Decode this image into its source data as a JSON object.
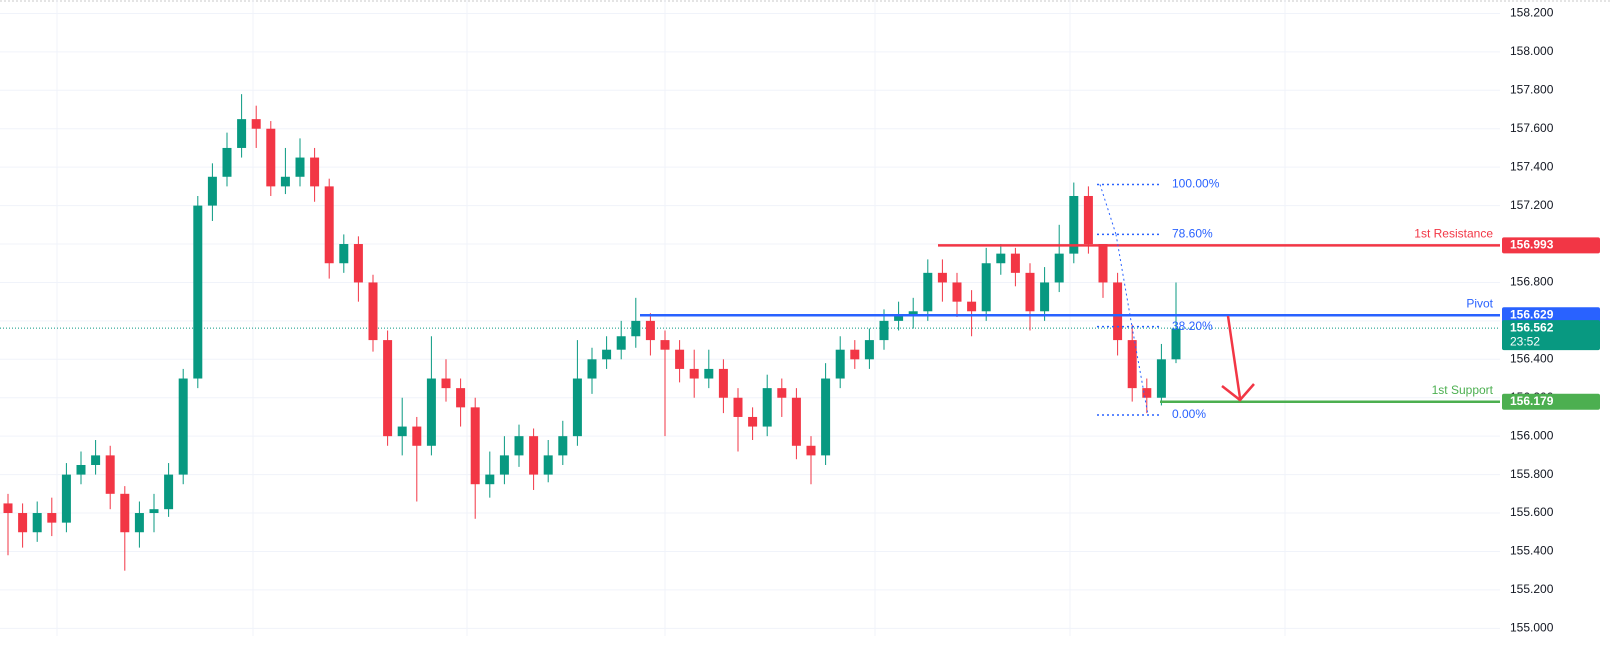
{
  "chart_data": {
    "type": "candlestick",
    "up_color": "#089981",
    "down_color": "#f23645",
    "ylim": [
      154.96,
      158.27
    ],
    "yticks": [
      {
        "value": 155.0,
        "label": "155.000"
      },
      {
        "value": 155.2,
        "label": "155.200"
      },
      {
        "value": 155.4,
        "label": "155.400"
      },
      {
        "value": 155.6,
        "label": "155.600"
      },
      {
        "value": 155.8,
        "label": "155.800"
      },
      {
        "value": 156.0,
        "label": "156.000"
      },
      {
        "value": 156.2,
        "label": "156.200"
      },
      {
        "value": 156.4,
        "label": "156.400"
      },
      {
        "value": 156.6,
        "label": "156.600"
      },
      {
        "value": 156.8,
        "label": "156.800"
      },
      {
        "value": 157.0,
        "label": "157.000"
      },
      {
        "value": 157.2,
        "label": "157.200"
      },
      {
        "value": 157.4,
        "label": "157.400"
      },
      {
        "value": 157.6,
        "label": "157.600"
      },
      {
        "value": 157.8,
        "label": "157.800"
      },
      {
        "value": 158.0,
        "label": "158.000"
      },
      {
        "value": 158.2,
        "label": "158.200"
      }
    ],
    "grid": true,
    "ohlc": [
      [
        155.65,
        155.7,
        155.38,
        155.6
      ],
      [
        155.6,
        155.65,
        155.42,
        155.5
      ],
      [
        155.5,
        155.66,
        155.45,
        155.6
      ],
      [
        155.6,
        155.68,
        155.48,
        155.55
      ],
      [
        155.55,
        155.86,
        155.5,
        155.8
      ],
      [
        155.8,
        155.92,
        155.75,
        155.85
      ],
      [
        155.85,
        155.98,
        155.8,
        155.9
      ],
      [
        155.9,
        155.95,
        155.62,
        155.7
      ],
      [
        155.7,
        155.74,
        155.3,
        155.5
      ],
      [
        155.5,
        155.66,
        155.42,
        155.6
      ],
      [
        155.6,
        155.7,
        155.5,
        155.62
      ],
      [
        155.62,
        155.86,
        155.58,
        155.8
      ],
      [
        155.8,
        156.35,
        155.75,
        156.3
      ],
      [
        156.3,
        157.25,
        156.25,
        157.2
      ],
      [
        157.2,
        157.42,
        157.12,
        157.35
      ],
      [
        157.35,
        157.58,
        157.3,
        157.5
      ],
      [
        157.5,
        157.78,
        157.45,
        157.65
      ],
      [
        157.65,
        157.72,
        157.5,
        157.6
      ],
      [
        157.6,
        157.64,
        157.25,
        157.3
      ],
      [
        157.3,
        157.5,
        157.26,
        157.35
      ],
      [
        157.35,
        157.55,
        157.3,
        157.45
      ],
      [
        157.45,
        157.5,
        157.22,
        157.3
      ],
      [
        157.3,
        157.34,
        156.82,
        156.9
      ],
      [
        156.9,
        157.05,
        156.85,
        157.0
      ],
      [
        157.0,
        157.04,
        156.7,
        156.8
      ],
      [
        156.8,
        156.84,
        156.44,
        156.5
      ],
      [
        156.5,
        156.55,
        155.95,
        156.0
      ],
      [
        156.0,
        156.2,
        155.9,
        156.05
      ],
      [
        156.05,
        156.1,
        155.66,
        155.95
      ],
      [
        155.95,
        156.52,
        155.9,
        156.3
      ],
      [
        156.3,
        156.4,
        156.18,
        156.25
      ],
      [
        156.25,
        156.3,
        156.05,
        156.15
      ],
      [
        156.15,
        156.2,
        155.57,
        155.75
      ],
      [
        155.75,
        155.92,
        155.68,
        155.8
      ],
      [
        155.8,
        156.0,
        155.75,
        155.9
      ],
      [
        155.9,
        156.06,
        155.84,
        156.0
      ],
      [
        156.0,
        156.04,
        155.72,
        155.8
      ],
      [
        155.8,
        155.98,
        155.76,
        155.9
      ],
      [
        155.9,
        156.08,
        155.85,
        156.0
      ],
      [
        156.0,
        156.5,
        155.95,
        156.3
      ],
      [
        156.3,
        156.46,
        156.22,
        156.4
      ],
      [
        156.4,
        156.52,
        156.35,
        156.45
      ],
      [
        156.45,
        156.6,
        156.4,
        156.52
      ],
      [
        156.52,
        156.72,
        156.46,
        156.6
      ],
      [
        156.6,
        156.64,
        156.42,
        156.5
      ],
      [
        156.5,
        156.55,
        156.0,
        156.45
      ],
      [
        156.45,
        156.5,
        156.28,
        156.35
      ],
      [
        156.35,
        156.45,
        156.2,
        156.3
      ],
      [
        156.3,
        156.45,
        156.25,
        156.35
      ],
      [
        156.35,
        156.4,
        156.12,
        156.2
      ],
      [
        156.2,
        156.25,
        155.92,
        156.1
      ],
      [
        156.1,
        156.15,
        155.98,
        156.05
      ],
      [
        156.05,
        156.32,
        156.0,
        156.25
      ],
      [
        156.25,
        156.3,
        156.1,
        156.2
      ],
      [
        156.2,
        156.25,
        155.88,
        155.95
      ],
      [
        155.95,
        156.0,
        155.75,
        155.9
      ],
      [
        155.9,
        156.38,
        155.85,
        156.3
      ],
      [
        156.3,
        156.52,
        156.25,
        156.45
      ],
      [
        156.45,
        156.5,
        156.35,
        156.4
      ],
      [
        156.4,
        156.56,
        156.35,
        156.5
      ],
      [
        156.5,
        156.66,
        156.45,
        156.6
      ],
      [
        156.6,
        156.7,
        156.55,
        156.63
      ],
      [
        156.63,
        156.72,
        156.56,
        156.65
      ],
      [
        156.65,
        156.92,
        156.6,
        156.85
      ],
      [
        156.85,
        156.92,
        156.7,
        156.8
      ],
      [
        156.8,
        156.85,
        156.62,
        156.7
      ],
      [
        156.7,
        156.76,
        156.52,
        156.65
      ],
      [
        156.65,
        156.98,
        156.6,
        156.9
      ],
      [
        156.9,
        157.0,
        156.84,
        156.95
      ],
      [
        156.95,
        156.98,
        156.78,
        156.85
      ],
      [
        156.85,
        156.9,
        156.55,
        156.65
      ],
      [
        156.65,
        156.88,
        156.6,
        156.8
      ],
      [
        156.8,
        157.1,
        156.75,
        156.95
      ],
      [
        156.95,
        157.32,
        156.9,
        157.25
      ],
      [
        157.25,
        157.3,
        156.95,
        157.0
      ],
      [
        157.0,
        156.98,
        156.72,
        156.8
      ],
      [
        156.8,
        156.85,
        156.42,
        156.5
      ],
      [
        156.5,
        156.58,
        156.18,
        156.25
      ],
      [
        156.25,
        156.3,
        156.12,
        156.2
      ],
      [
        156.2,
        156.48,
        156.16,
        156.4
      ],
      [
        156.4,
        156.8,
        156.38,
        156.56
      ]
    ],
    "levels": [
      {
        "name": "1st Resistance",
        "value": 156.993,
        "color": "#f23645"
      },
      {
        "name": "Pivot",
        "value": 156.629,
        "color": "#2962ff"
      },
      {
        "name": "1st Support",
        "value": 156.179,
        "color": "#4caf50"
      }
    ],
    "current_price": {
      "value": 156.562,
      "countdown": "23:52",
      "color": "#089981"
    },
    "fib_levels": [
      {
        "ratio": 100,
        "ratio_label": "100.00%",
        "price": 157.31
      },
      {
        "ratio": 78.6,
        "ratio_label": "78.60%",
        "price": 157.05
      },
      {
        "ratio": 38.2,
        "ratio_label": "38.20%",
        "price": 156.57
      },
      {
        "ratio": 0,
        "ratio_label": "0.00%",
        "price": 156.11
      }
    ]
  }
}
